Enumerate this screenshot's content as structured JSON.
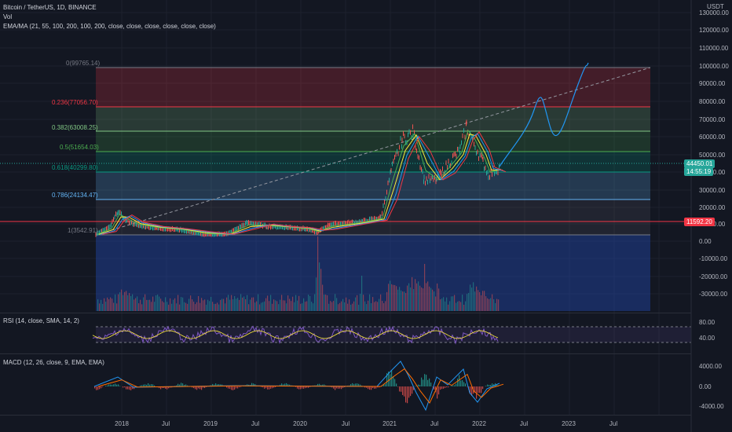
{
  "header": {
    "symbol_line": "Bitcoin / TetherUS, 1D, BINANCE",
    "vol_label": "Vol",
    "ema_line": "EMA/MA (21, 55, 100, 200, 100, 200, close, close, close, close, close, close)"
  },
  "price_axis": {
    "currency": "USDT",
    "labels": [
      "130000.00",
      "120000.00",
      "110000.00",
      "100000.00",
      "90000.00",
      "80000.00",
      "70000.00",
      "60000.00",
      "50000.00",
      "40000.00",
      "30000.00",
      "20000.00",
      "10000.00",
      "0.00",
      "-10000.00",
      "-20000.00",
      "-30000.00",
      "-40000.00"
    ],
    "current_price": "44450.01",
    "countdown": "14:55:19",
    "line_price": "11592.20"
  },
  "fib_levels": [
    {
      "label": "0(99765.14)",
      "color": "#787b86"
    },
    {
      "label": "0.236(77056.70)",
      "color": "#f23645"
    },
    {
      "label": "0.382(63008.25)",
      "color": "#81c784"
    },
    {
      "label": "0.5(51654.03)",
      "color": "#4caf50"
    },
    {
      "label": "0.618(40299.80)",
      "color": "#089981"
    },
    {
      "label": "0.786(24134.47)",
      "color": "#64b5f6"
    },
    {
      "label": "1(3542.91)",
      "color": "#787b86"
    }
  ],
  "rsi": {
    "title": "RSI (14, close, SMA, 14, 2)",
    "labels": [
      "80.00",
      "40.00"
    ]
  },
  "macd": {
    "title": "MACD (12, 26, close, 9, EMA, EMA)",
    "labels": [
      "4000.00",
      "0.00",
      "-4000.00"
    ]
  },
  "time_axis": [
    "2018",
    "Jul",
    "2019",
    "Jul",
    "2020",
    "Jul",
    "2021",
    "Jul",
    "2022",
    "Jul",
    "2023",
    "Jul"
  ],
  "colors": {
    "background": "#131722",
    "price_tag": "#26a69a",
    "line_tag": "#f23645",
    "projection": "#2196f3"
  }
}
